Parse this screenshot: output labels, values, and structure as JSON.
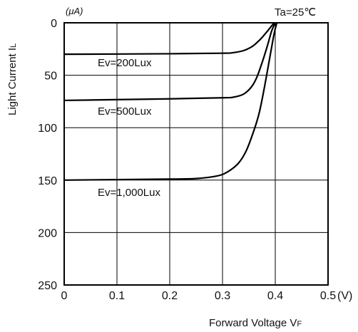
{
  "chart_data": {
    "type": "line",
    "xlabel": "Forward Voltage V",
    "xlabel_sub": "F",
    "ylabel": "Light Current I",
    "ylabel_sub": "L",
    "y_unit": "(μA)",
    "x_unit": "(V)",
    "condition": "Ta=25℃",
    "xlim": [
      0,
      0.5
    ],
    "ylim": [
      0,
      250
    ],
    "y_inverted": true,
    "grid": true,
    "xticks": [
      "0",
      "0.1",
      "0.2",
      "0.3",
      "0.4",
      "0.5"
    ],
    "yticks": [
      "0",
      "50",
      "100",
      "150",
      "200",
      "250"
    ],
    "series": [
      {
        "name": "Ev=200Lux",
        "x": [
          0,
          0.2,
          0.3,
          0.32,
          0.34,
          0.355,
          0.365,
          0.375,
          0.385,
          0.393,
          0.398
        ],
        "y": [
          30,
          29.5,
          29,
          28.5,
          26.5,
          23,
          19,
          14,
          8,
          3,
          0
        ]
      },
      {
        "name": "Ev=500Lux",
        "x": [
          0,
          0.2,
          0.3,
          0.32,
          0.34,
          0.355,
          0.365,
          0.375,
          0.385,
          0.393,
          0.4
        ],
        "y": [
          74,
          72.5,
          71.5,
          71,
          68,
          61,
          52,
          38,
          22,
          8,
          0
        ]
      },
      {
        "name": "Ev=1,000Lux",
        "x": [
          0,
          0.2,
          0.25,
          0.29,
          0.31,
          0.33,
          0.345,
          0.36,
          0.37,
          0.38,
          0.39,
          0.398,
          0.403
        ],
        "y": [
          150,
          149,
          148.5,
          146,
          142,
          134,
          122,
          102,
          85,
          60,
          32,
          10,
          0
        ]
      }
    ]
  }
}
